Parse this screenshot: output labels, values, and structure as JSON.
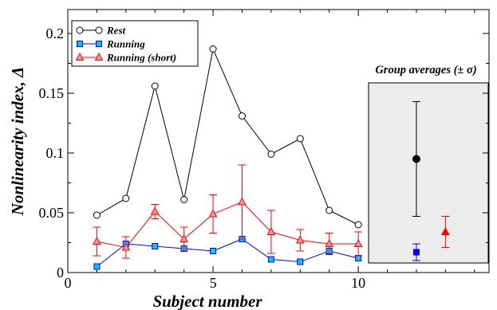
{
  "chart_data": {
    "type": "line",
    "xlabel": "Subject number",
    "ylabel": "Nonlinearity index, Δ",
    "xlim": [
      0,
      14.5
    ],
    "ylim": [
      0,
      0.22
    ],
    "x_ticks": [
      0,
      5,
      10
    ],
    "y_ticks": [
      0,
      0.05,
      0.1,
      0.15,
      0.2
    ],
    "x_tick_labels": [
      "0",
      "5",
      "10"
    ],
    "y_tick_labels": [
      "0",
      "0.05",
      "0.1",
      "0.15",
      "0.2"
    ],
    "grid": false,
    "legend_position": "top-left",
    "x": [
      1,
      2,
      3,
      4,
      5,
      6,
      7,
      8,
      9,
      10
    ],
    "series": [
      {
        "name": "Rest",
        "marker": "circle-open",
        "color": "#000000",
        "values": [
          0.048,
          0.062,
          0.156,
          0.061,
          0.187,
          0.131,
          0.099,
          0.112,
          0.052,
          0.04
        ]
      },
      {
        "name": "Running",
        "marker": "square",
        "color": "#0000ff",
        "fill": "#00c8ff",
        "values": [
          0.005,
          0.024,
          0.022,
          0.02,
          0.018,
          0.028,
          0.011,
          0.009,
          0.018,
          0.012
        ]
      },
      {
        "name": "Running (short)",
        "marker": "triangle",
        "color": "#ff0000",
        "fill": "#ff9999",
        "values": [
          0.026,
          0.021,
          0.051,
          0.028,
          0.049,
          0.059,
          0.034,
          0.027,
          0.024,
          0.024
        ],
        "errors": [
          0.012,
          0.009,
          0.006,
          0.01,
          0.016,
          0.031,
          0.018,
          0.009,
          0.009,
          0.01
        ]
      }
    ],
    "inset": {
      "title": "Group averages (± σ)",
      "background": "#ececec",
      "points": [
        {
          "series": "Rest",
          "x": 12,
          "value": 0.095,
          "error": 0.048,
          "marker": "circle-filled",
          "color": "#000000"
        },
        {
          "series": "Running",
          "x": 12,
          "value": 0.017,
          "error": 0.007,
          "marker": "square",
          "color": "#0000ff"
        },
        {
          "series": "Running (short)",
          "x": 13,
          "value": 0.034,
          "error": 0.013,
          "marker": "triangle",
          "color": "#ff0000"
        }
      ]
    }
  }
}
